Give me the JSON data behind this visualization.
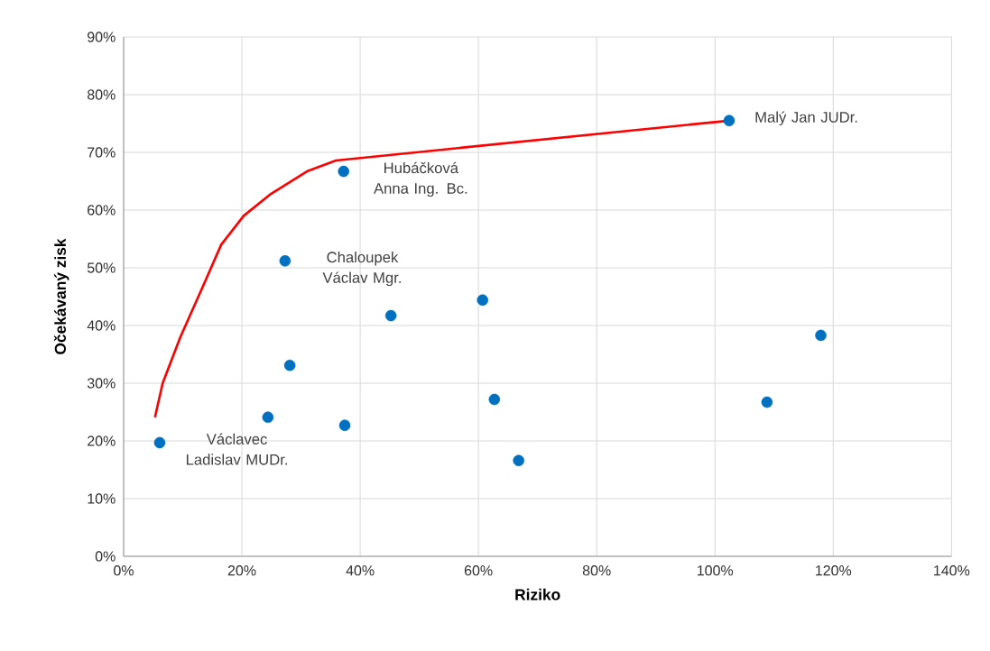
{
  "chart_data": {
    "type": "scatter",
    "xlabel": "Riziko",
    "ylabel": "Očekávaný zisk",
    "xlim": [
      0,
      140
    ],
    "ylim": [
      0,
      90
    ],
    "xticks": [
      {
        "value": 0,
        "label": "0%"
      },
      {
        "value": 20,
        "label": "20%"
      },
      {
        "value": 40,
        "label": "40%"
      },
      {
        "value": 60,
        "label": "60%"
      },
      {
        "value": 80,
        "label": "80%"
      },
      {
        "value": 100,
        "label": "100%"
      },
      {
        "value": 120,
        "label": "120%"
      },
      {
        "value": 140,
        "label": "140%"
      }
    ],
    "yticks": [
      {
        "value": 0,
        "label": "0%"
      },
      {
        "value": 10,
        "label": "10%"
      },
      {
        "value": 20,
        "label": "20%"
      },
      {
        "value": 30,
        "label": "30%"
      },
      {
        "value": 40,
        "label": "40%"
      },
      {
        "value": 50,
        "label": "50%"
      },
      {
        "value": 60,
        "label": "60%"
      },
      {
        "value": 70,
        "label": "70%"
      },
      {
        "value": 80,
        "label": "80%"
      },
      {
        "value": 90,
        "label": "90%"
      }
    ],
    "grid": true,
    "series": [
      {
        "color": "#0070c0",
        "marker": "circle",
        "x": [
          6.1,
          24.4,
          28.1,
          27.3,
          37.2,
          37.4,
          45.2,
          60.7,
          62.7,
          66.8,
          102.4,
          108.8,
          117.9
        ],
        "values": [
          19.7,
          24.1,
          33.1,
          51.2,
          66.7,
          22.7,
          41.7,
          44.4,
          27.2,
          16.6,
          75.5,
          26.7,
          38.3
        ]
      },
      {
        "type": "line",
        "color": "#ff0000",
        "marker": "none",
        "line_style": "solid",
        "x": [
          5.3,
          6.6,
          9.6,
          13.5,
          16.5,
          20.3,
          24.9,
          31,
          35.9,
          102.4
        ],
        "values": [
          24.1,
          30,
          38,
          47,
          54,
          59,
          62.8,
          66.7,
          68.6,
          75.5
        ]
      }
    ],
    "annotations": [
      {
        "text": "Václavec Ladislav MUDr.",
        "x": 6.1,
        "y": 19.7
      },
      {
        "text": "Chaloupek Václav Mgr.",
        "x": 27.3,
        "y": 51.2
      },
      {
        "text": "Hubáčková Anna Ing. Bc.",
        "x": 37.2,
        "y": 66.7
      },
      {
        "text": "Malý Jan JUDr.",
        "x": 102.4,
        "y": 75.5
      }
    ]
  }
}
